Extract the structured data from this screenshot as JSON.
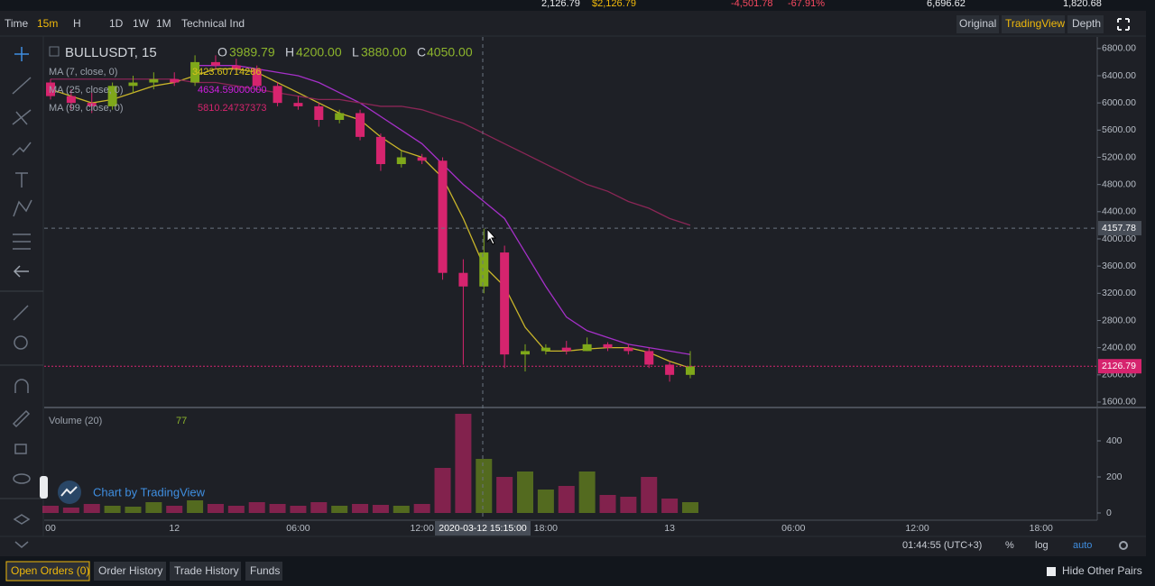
{
  "header": {
    "last_price": "2,126.79",
    "last_price_usd": "$2,126.79",
    "change": "-4,501.78",
    "change_pct": "-67.91%",
    "high": "6,696.62",
    "low": "1,820.68"
  },
  "toolbar": {
    "time": "Time",
    "interval": "15m",
    "hour": "H",
    "day": "1D",
    "week": "1W",
    "month": "1M",
    "indicators": "Technical Ind",
    "original": "Original",
    "tradingview": "TradingView",
    "depth": "Depth"
  },
  "legend": {
    "symbol": "BULLUSDT, 15",
    "o_label": "O",
    "o": "3989.79",
    "h_label": "H",
    "h": "4200.00",
    "l_label": "L",
    "l": "3880.00",
    "c_label": "C",
    "c": "4050.00",
    "ma7": "MA (7, close, 0)",
    "ma7_value": "3423.60714286",
    "ma25": "MA (25, close, 0)",
    "ma25_value": "4634.59000000",
    "ma99": "MA (99, close, 0)",
    "ma99_value": "5810.24737373",
    "volume": "Volume (20)",
    "volume_value": "77",
    "watermark": "Chart by TradingView"
  },
  "chart": {
    "up_color": "#7fa81a",
    "down_color": "#d6246e",
    "ylim": [
      1520,
      6970
    ],
    "yticks": [
      {
        "value": 6800,
        "label": "6800.00"
      },
      {
        "value": 6400,
        "label": "6400.00"
      },
      {
        "value": 6000,
        "label": "6000.00"
      },
      {
        "value": 5600,
        "label": "5600.00"
      },
      {
        "value": 5200,
        "label": "5200.00"
      },
      {
        "value": 4800,
        "label": "4800.00"
      },
      {
        "value": 4400,
        "label": "4400.00"
      },
      {
        "value": 4000,
        "label": "4000.00"
      },
      {
        "value": 3600,
        "label": "3600.00"
      },
      {
        "value": 3200,
        "label": "3200.00"
      },
      {
        "value": 2800,
        "label": "2800.00"
      },
      {
        "value": 2400,
        "label": "2400.00"
      },
      {
        "value": 2000,
        "label": "2000.00"
      },
      {
        "value": 1600,
        "label": "1600.00"
      }
    ],
    "crosshair_price": 4157.78,
    "crosshair_time": "2020-03-12 15:15:00",
    "last_price": 2126.79,
    "xticks": [
      "00",
      "12",
      "06:00",
      "12:00",
      "18:00",
      "13",
      "06:00",
      "12:00",
      "18:00"
    ],
    "open": [
      6300,
      6100,
      6000,
      5950,
      6250,
      6300,
      6350,
      6300,
      6600,
      6550,
      6500,
      6250,
      6000,
      5950,
      5750,
      5850,
      5500,
      5100,
      5200,
      5150,
      3500,
      3300,
      3800,
      2300,
      2350,
      2400,
      2350,
      2450,
      2400,
      2350,
      2150,
      2000
    ],
    "high": [
      6350,
      6200,
      6150,
      6300,
      6400,
      6450,
      6450,
      6700,
      6700,
      6650,
      6550,
      6300,
      6100,
      6000,
      5900,
      5900,
      5550,
      5300,
      5250,
      5200,
      3700,
      4150,
      3900,
      2450,
      2450,
      2500,
      2550,
      2480,
      2450,
      2400,
      2200,
      2350
    ],
    "low": [
      6050,
      5900,
      5850,
      5900,
      6150,
      6200,
      6250,
      6250,
      6500,
      6450,
      6200,
      5950,
      5900,
      5650,
      5700,
      5450,
      5000,
      5050,
      5100,
      3400,
      2150,
      3200,
      2100,
      2050,
      2300,
      2300,
      2350,
      2350,
      2300,
      2100,
      1900,
      1950
    ],
    "close": [
      6100,
      6000,
      5950,
      6250,
      6300,
      6350,
      6300,
      6600,
      6550,
      6500,
      6250,
      6000,
      5950,
      5750,
      5850,
      5500,
      5100,
      5200,
      5150,
      3500,
      3300,
      3800,
      2300,
      2350,
      2400,
      2350,
      2450,
      2400,
      2350,
      2150,
      2000,
      2126.79
    ],
    "ma_lines": [
      {
        "name": "MA7",
        "color": "#c9b52a",
        "values": [
          6200,
          6100,
          6000,
          6050,
          6150,
          6250,
          6300,
          6400,
          6500,
          6500,
          6450,
          6300,
          6150,
          6000,
          5850,
          5750,
          5500,
          5300,
          5200,
          4900,
          4300,
          3600,
          3300,
          2700,
          2350,
          2350,
          2380,
          2400,
          2400,
          2330,
          2200,
          2100
        ]
      },
      {
        "name": "MA25",
        "color": "#a530c8",
        "values": [
          null,
          null,
          null,
          null,
          null,
          null,
          null,
          6550,
          6550,
          6550,
          6500,
          6450,
          6400,
          6300,
          6150,
          6000,
          5800,
          5600,
          5400,
          5100,
          4800,
          4550,
          4300,
          3800,
          3300,
          2850,
          2650,
          2550,
          2450,
          2400,
          2350,
          2300
        ]
      },
      {
        "name": "MA99",
        "color": "#8a2656",
        "values": [
          6350,
          6350,
          6350,
          6350,
          6350,
          6350,
          6350,
          6300,
          6300,
          6250,
          6200,
          6150,
          6100,
          6050,
          6050,
          6000,
          5950,
          5950,
          5900,
          5800,
          5700,
          5550,
          5400,
          5250,
          5100,
          4950,
          4800,
          4700,
          4550,
          4450,
          4300,
          4200
        ]
      }
    ],
    "volume": {
      "values": [
        40,
        30,
        50,
        40,
        35,
        60,
        40,
        70,
        50,
        40,
        60,
        50,
        40,
        60,
        40,
        50,
        45,
        40,
        50,
        250,
        550,
        300,
        200,
        230,
        130,
        150,
        230,
        100,
        90,
        200,
        80,
        60
      ],
      "ylim": [
        -40,
        570
      ],
      "yticks": [
        400,
        200,
        0
      ]
    }
  },
  "status": {
    "clock": "01:44:55 (UTC+3)",
    "percent": "%",
    "log": "log",
    "auto": "auto"
  },
  "tabs": {
    "open_orders": "Open Orders (0)",
    "order_history": "Order History",
    "trade_history": "Trade History",
    "funds": "Funds",
    "hide_pairs": "Hide Other Pairs"
  }
}
